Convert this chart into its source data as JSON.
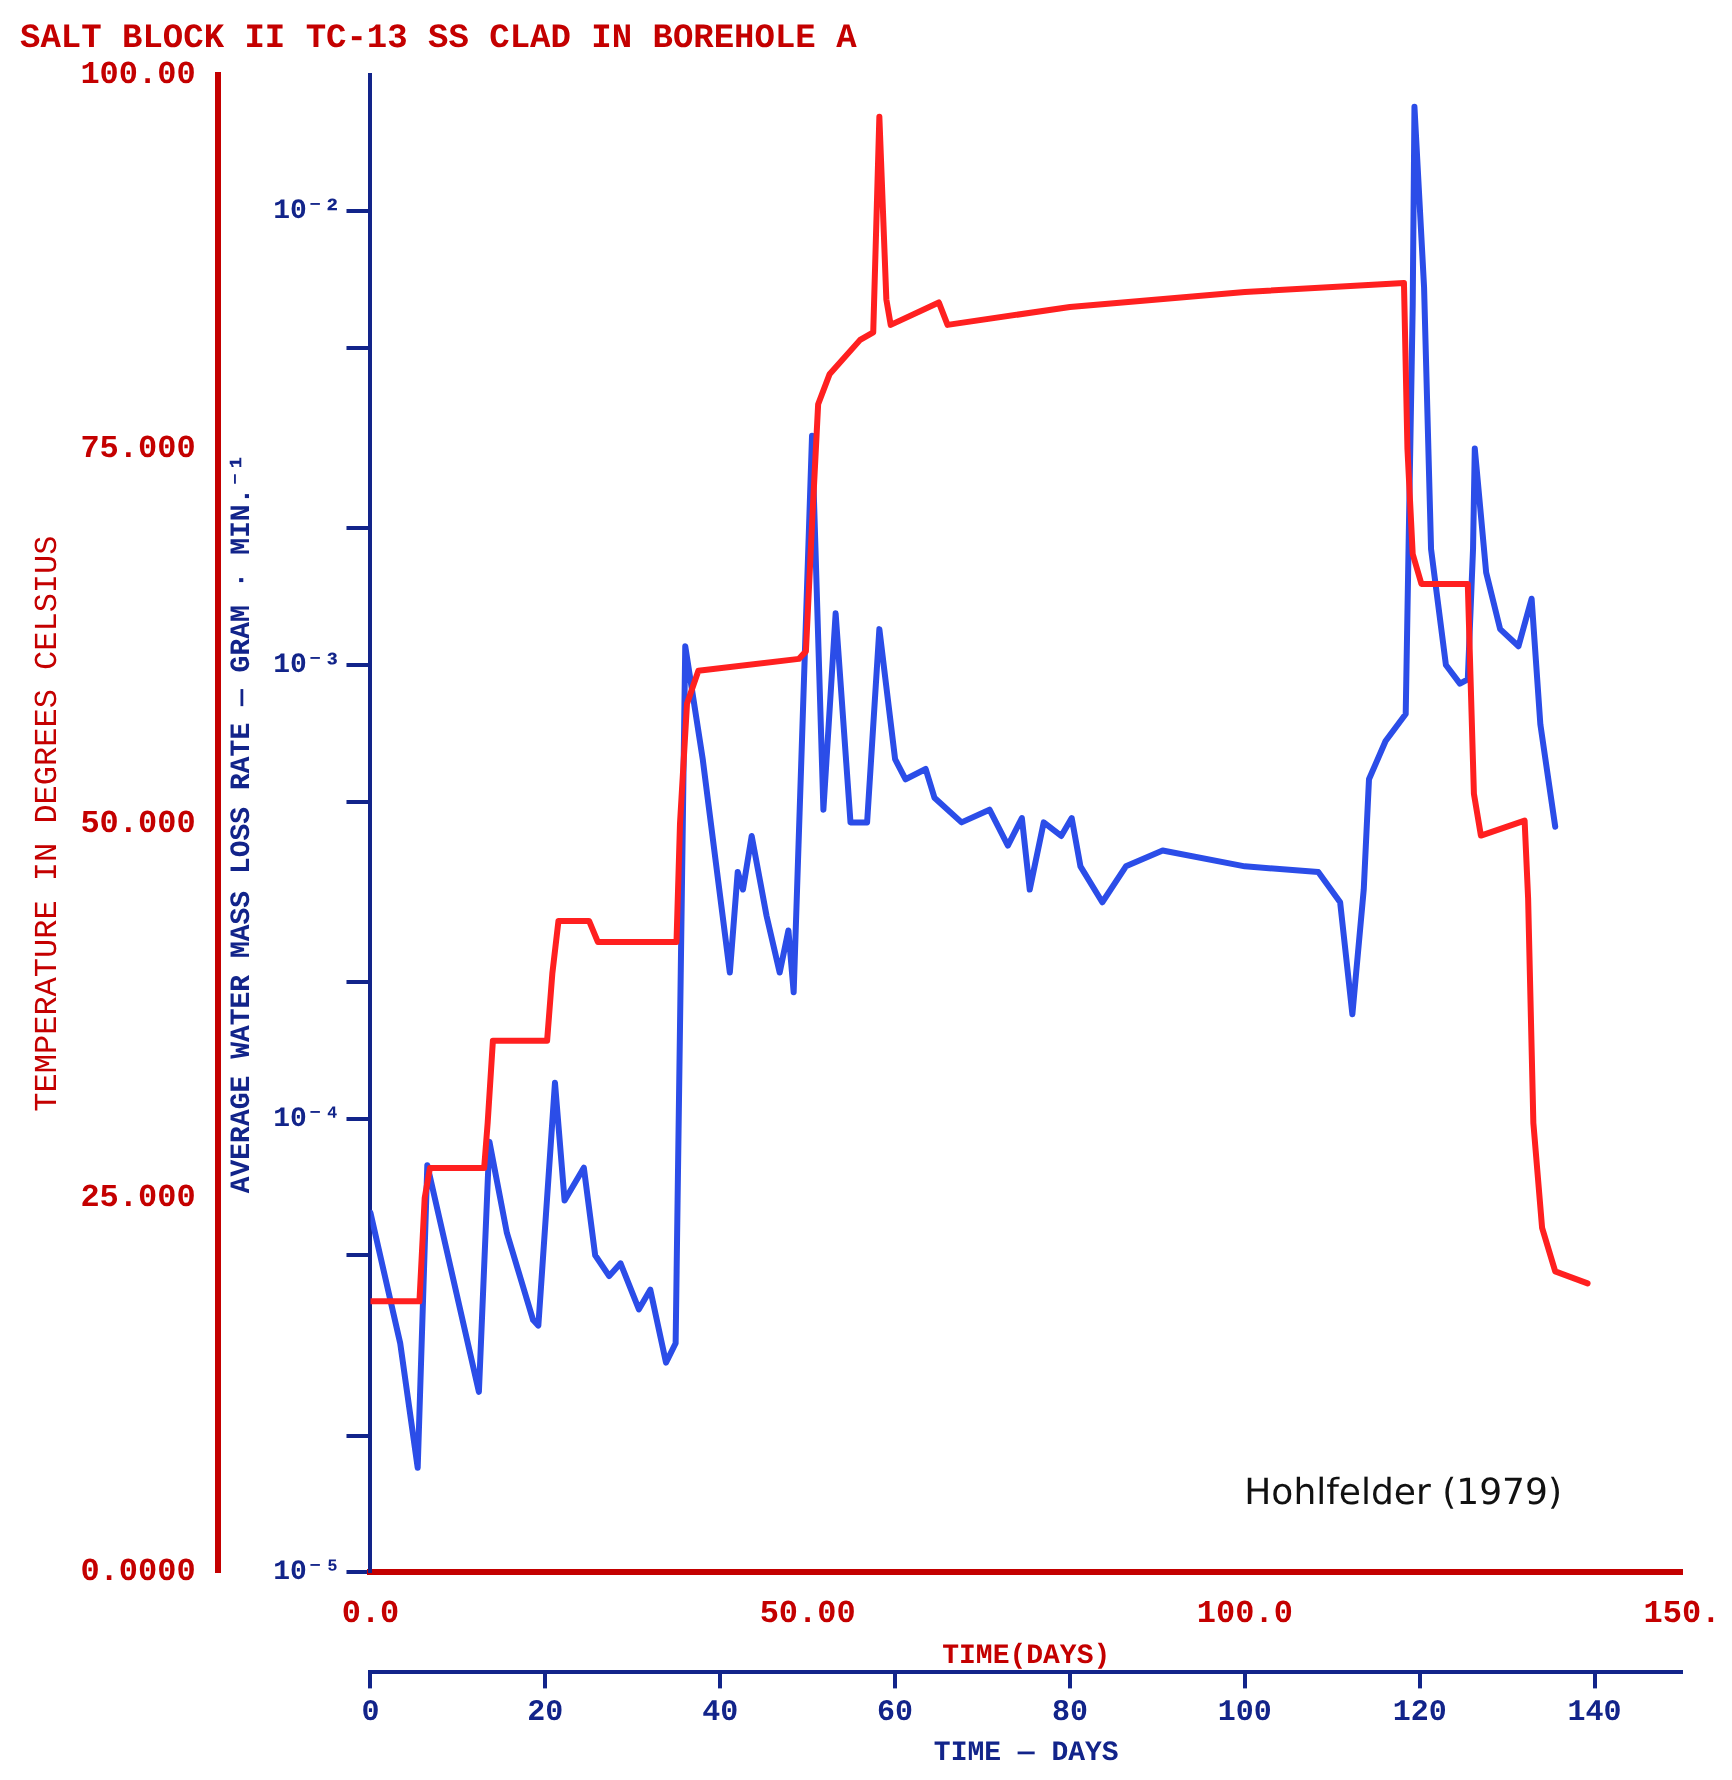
{
  "chart_data": {
    "type": "line",
    "title": "SALT BLOCK II TC-13 SS CLAD IN BOREHOLE A",
    "xlabel": "TIME(DAYS)",
    "x2label": "TIME — DAYS",
    "ylabel": "TEMPERATURE IN DEGREES CELSIUS",
    "y2label": "AVERAGE WATER MASS LOSS RATE — GRAM · MIN.⁻¹",
    "annotations": [
      "Hohlfelder (1979)"
    ],
    "xlim": [
      0,
      150
    ],
    "xticks": [
      {
        "value": 0,
        "label": "0.0"
      },
      {
        "value": 50,
        "label": "50.00"
      },
      {
        "value": 100,
        "label": "100.0"
      },
      {
        "value": 150,
        "label": "150."
      }
    ],
    "x2lim": [
      0,
      150
    ],
    "x2ticks": [
      0,
      20,
      40,
      60,
      80,
      100,
      120,
      140
    ],
    "ylim": [
      0,
      100
    ],
    "yticks": [
      {
        "value": 0,
        "label": "0.0000"
      },
      {
        "value": 25,
        "label": "25.000"
      },
      {
        "value": 50,
        "label": "50.000"
      },
      {
        "value": 75,
        "label": "75.000"
      },
      {
        "value": 100,
        "label": "100.00"
      }
    ],
    "y2lim": [
      1e-05,
      0.02
    ],
    "y2ticks": [
      {
        "value": 1e-05,
        "label": "10⁻⁵"
      },
      {
        "value": 2e-05,
        "label": null
      },
      {
        "value": 5e-05,
        "label": null
      },
      {
        "value": 0.0001,
        "label": "10⁻⁴"
      },
      {
        "value": 0.0002,
        "label": null
      },
      {
        "value": 0.0005,
        "label": null
      },
      {
        "value": 0.001,
        "label": "10⁻³"
      },
      {
        "value": 0.002,
        "label": null
      },
      {
        "value": 0.005,
        "label": null
      },
      {
        "value": 0.01,
        "label": "10⁻²"
      }
    ],
    "log": "y2",
    "grid": false,
    "legend": false,
    "marker": "none",
    "line_style": "solid",
    "series": [
      {
        "color": "#ff2020",
        "x": [
          0,
          5.6,
          6.2,
          6.8,
          13.0,
          13.4,
          14.0,
          20.2,
          20.8,
          21.5,
          25,
          26,
          35,
          35.4,
          36.2,
          37.5,
          49,
          49.8,
          50.5,
          51.2,
          52.5,
          56,
          57.5,
          58.2,
          59,
          59.5,
          65,
          66,
          80,
          100,
          118.2,
          118.6,
          119.2,
          120.2,
          125.5,
          125.8,
          126.2,
          127,
          132,
          132.4,
          133,
          134,
          135.5,
          139.2
        ],
        "values": [
          18.1,
          18.1,
          25,
          27,
          27,
          30,
          35.5,
          35.5,
          40,
          43.5,
          43.5,
          42.1,
          42.1,
          50,
          58,
          60.2,
          61,
          61.5,
          70,
          78,
          80,
          82.3,
          82.8,
          97.2,
          85,
          83.3,
          84.8,
          83.3,
          84.5,
          85.5,
          86.1,
          75,
          68,
          66,
          66,
          60,
          52,
          49.2,
          50.2,
          45,
          30,
          23,
          20.1,
          19.3
        ]
      },
      {
        "color": "#2b4de8",
        "axis": "y2",
        "x": [
          0,
          3.4,
          5.4,
          6.5,
          12.4,
          13.6,
          15.6,
          18.6,
          19.2,
          21.1,
          22.2,
          24.4,
          25.7,
          27.3,
          28.6,
          30.7,
          32,
          33.8,
          34.9,
          36.0,
          38,
          41.1,
          42,
          42.6,
          43.6,
          45.3,
          46.8,
          47.8,
          48.4,
          50.5,
          51.8,
          53.2,
          54.9,
          56.8,
          58.2,
          60,
          61.2,
          63.5,
          64.5,
          67.6,
          70.8,
          72.9,
          74.5,
          75.4,
          77,
          79,
          80.2,
          81.2,
          83.7,
          86.4,
          90.6,
          100,
          108.4,
          110.9,
          112.3,
          113.6,
          114.2,
          116.1,
          118.4,
          119.2,
          119.4,
          120.5,
          121.3,
          123,
          124.6,
          125.5,
          126.1,
          126.3,
          127.6,
          129.2,
          131.3,
          132.8,
          133.8,
          135.5
        ],
        "values": [
          6.2e-05,
          3.2e-05,
          1.7e-05,
          7.9e-05,
          2.5e-05,
          8.9e-05,
          5.6e-05,
          3.6e-05,
          3.5e-05,
          0.00012,
          6.6e-05,
          7.8e-05,
          5e-05,
          4.5e-05,
          4.8e-05,
          3.8e-05,
          4.2e-05,
          2.9e-05,
          3.2e-05,
          0.0011,
          0.00062,
          0.00021,
          0.00035,
          0.00032,
          0.00042,
          0.00028,
          0.00021,
          0.00026,
          0.00019,
          0.0032,
          0.00048,
          0.0013,
          0.00045,
          0.00045,
          0.0012,
          0.00062,
          0.00056,
          0.00059,
          0.00051,
          0.00045,
          0.00048,
          0.0004,
          0.00046,
          0.00032,
          0.00045,
          0.00042,
          0.00046,
          0.00036,
          0.0003,
          0.00036,
          0.00039,
          0.00036,
          0.00035,
          0.0003,
          0.00017,
          0.00032,
          0.00056,
          0.00068,
          0.00078,
          0.0062,
          0.017,
          0.0068,
          0.0018,
          0.001,
          0.00091,
          0.00093,
          0.0018,
          0.003,
          0.0016,
          0.0012,
          0.0011,
          0.0014,
          0.00074,
          0.00044
        ]
      }
    ]
  }
}
